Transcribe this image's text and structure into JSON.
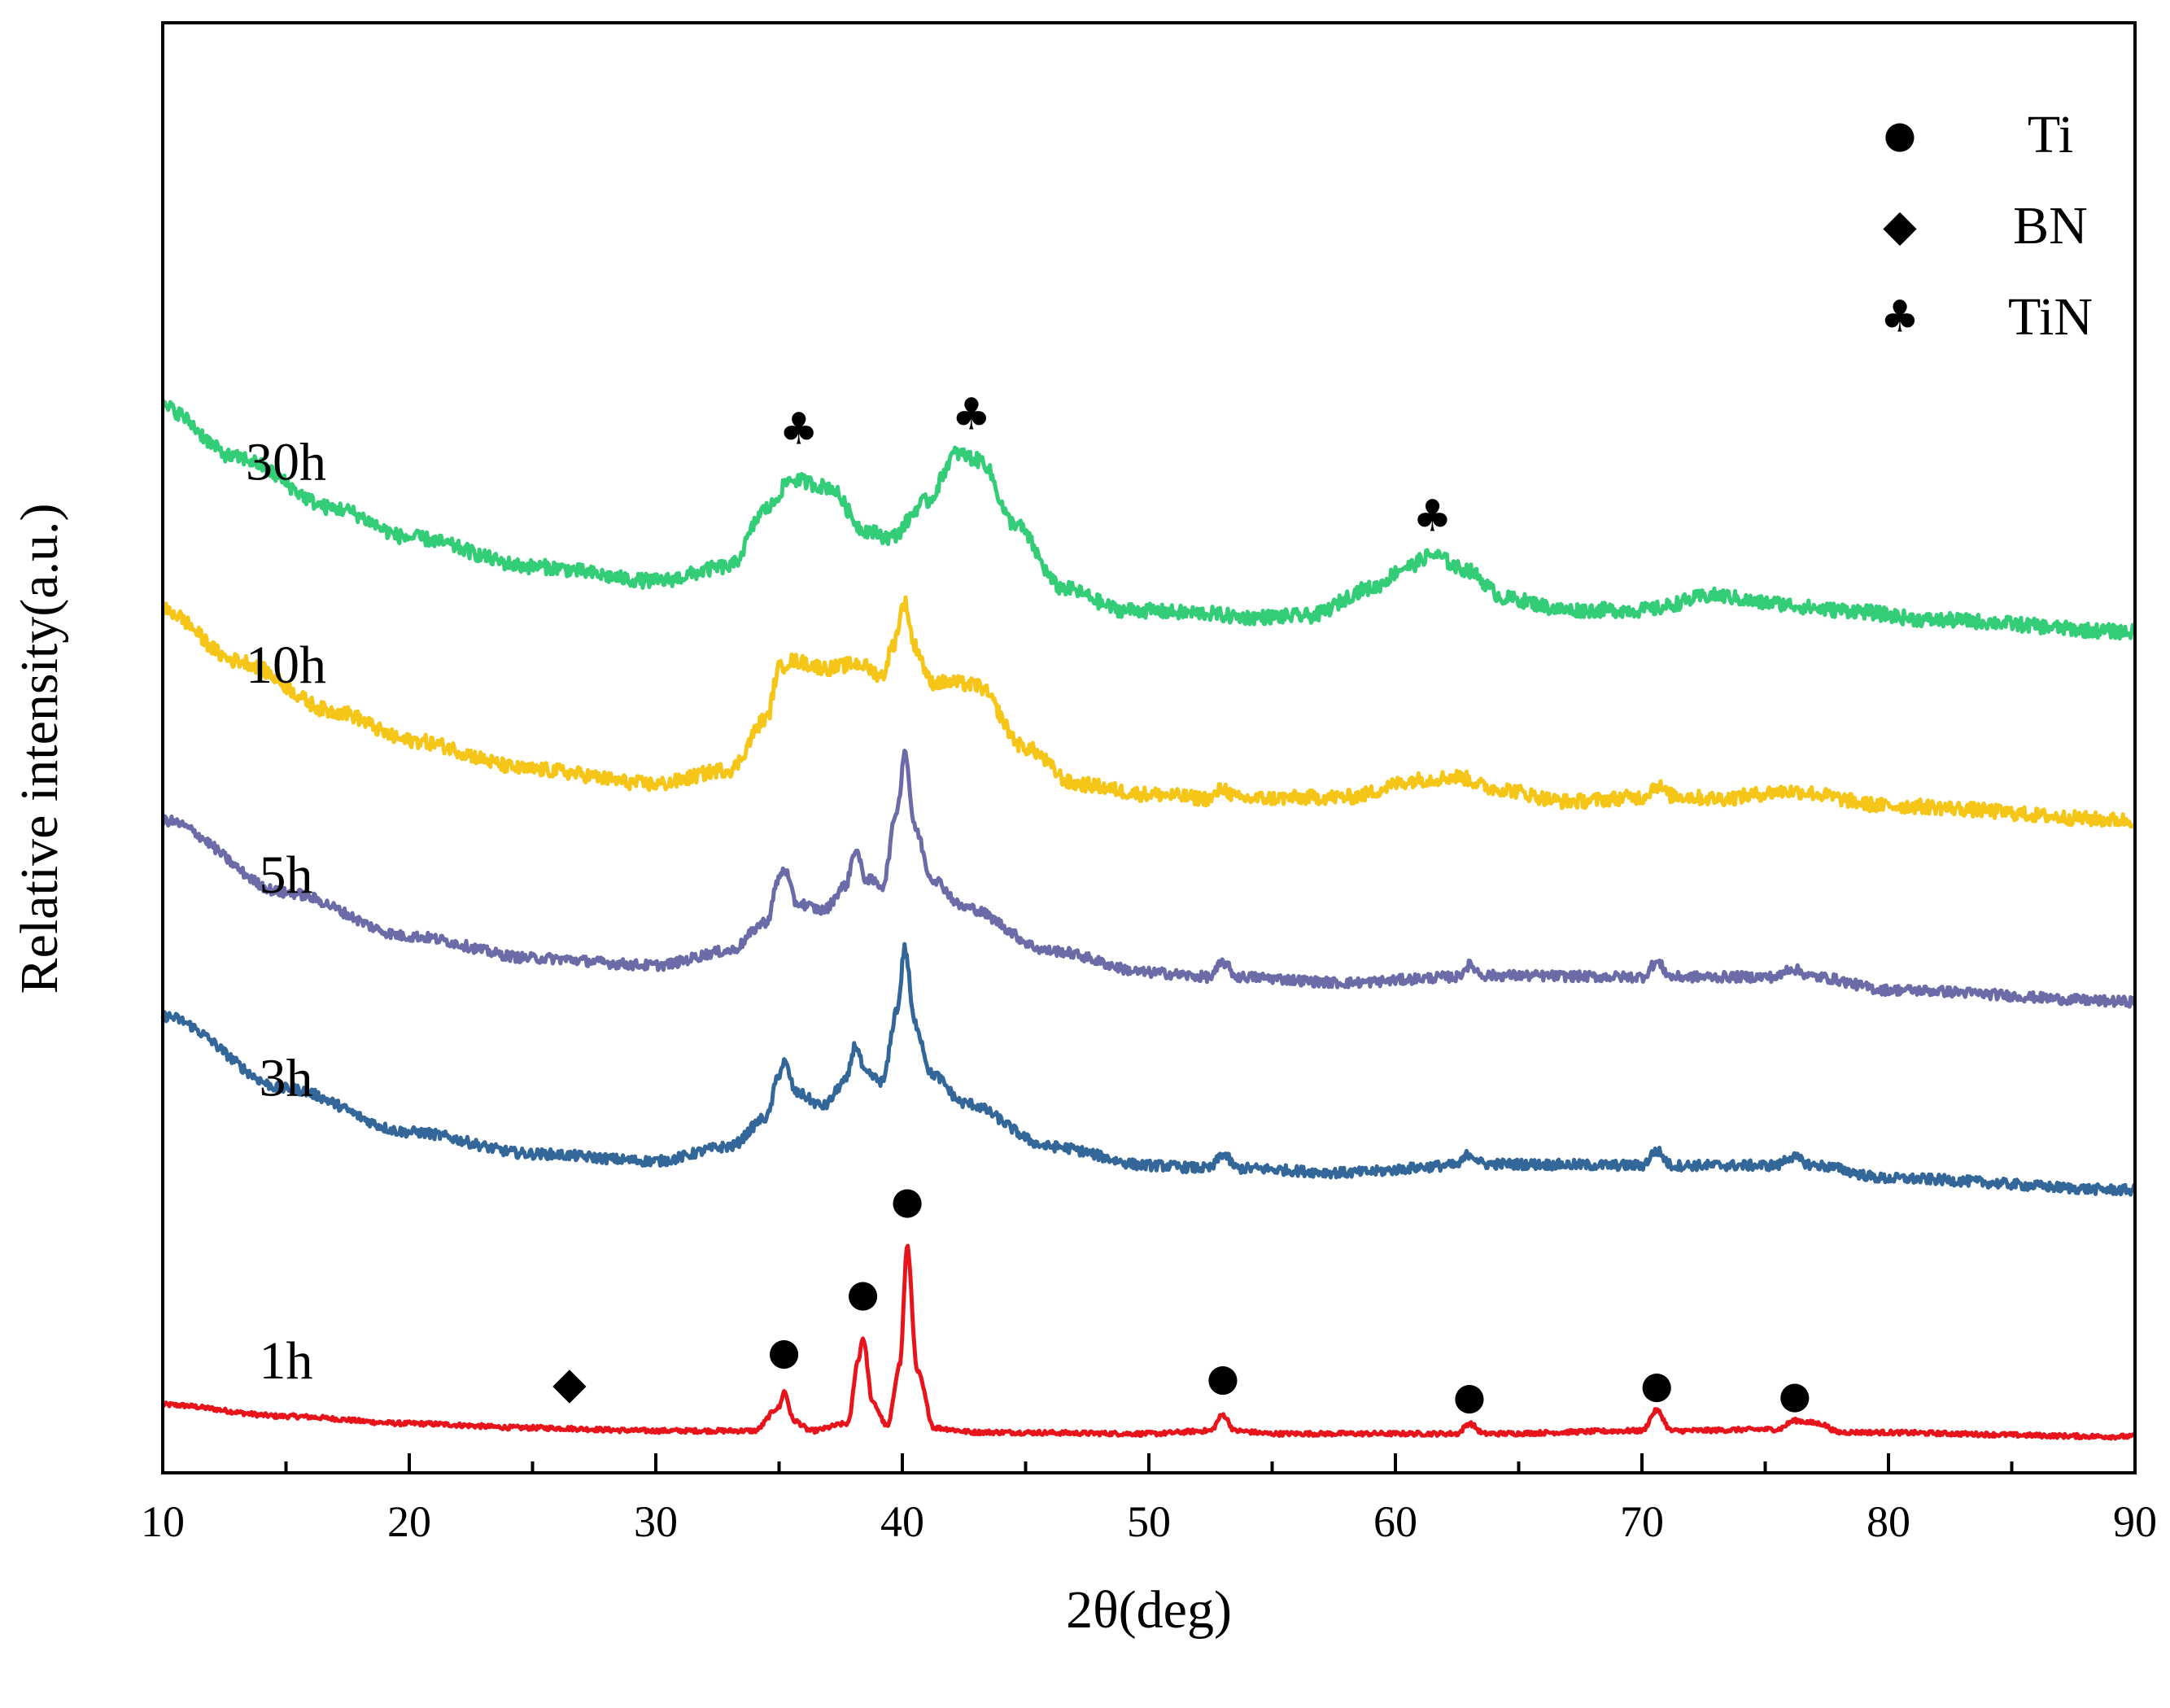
{
  "chart_data": {
    "type": "line",
    "title": "",
    "xlabel": "2θ(deg)",
    "ylabel": "Relative intensity(a.u.)",
    "xlim": [
      10,
      90
    ],
    "ylim": [
      0,
      100
    ],
    "x_ticks": [
      10,
      20,
      30,
      40,
      50,
      60,
      70,
      80,
      90
    ],
    "x_tick_labels": [
      "10",
      "20",
      "30",
      "40",
      "50",
      "60",
      "70",
      "80",
      "90"
    ],
    "y_ticks_shown": false,
    "legend": {
      "position": "top-right",
      "entries": [
        {
          "symbol": "circle",
          "glyph": "●",
          "label": "Ti"
        },
        {
          "symbol": "diamond",
          "glyph": "◆",
          "label": "BN"
        },
        {
          "symbol": "club",
          "glyph": "♣",
          "label": "TiN"
        }
      ]
    },
    "series": [
      {
        "name": "1h",
        "color": "#e8141c",
        "noise": 0.15,
        "points": [
          [
            10,
            4.7
          ],
          [
            15,
            3.9
          ],
          [
            20,
            3.4
          ],
          [
            25,
            3.1
          ],
          [
            30,
            2.9
          ],
          [
            34,
            2.9
          ],
          [
            35,
            4.5
          ],
          [
            35.2,
            5.6
          ],
          [
            35.6,
            3.6
          ],
          [
            36.3,
            2.9
          ],
          [
            37.8,
            3.4
          ],
          [
            38.2,
            7.7
          ],
          [
            38.4,
            9.3
          ],
          [
            38.8,
            4.8
          ],
          [
            39.4,
            3.2
          ],
          [
            39.9,
            7.5
          ],
          [
            40.2,
            15.6
          ],
          [
            40.6,
            7.0
          ],
          [
            41.3,
            3.1
          ],
          [
            43,
            2.8
          ],
          [
            50,
            2.7
          ],
          [
            52.5,
            2.9
          ],
          [
            53,
            4.0
          ],
          [
            53.5,
            2.9
          ],
          [
            55,
            2.7
          ],
          [
            62.5,
            2.7
          ],
          [
            63,
            3.4
          ],
          [
            63.6,
            2.7
          ],
          [
            70,
            2.9
          ],
          [
            70.6,
            4.3
          ],
          [
            71.2,
            2.9
          ],
          [
            75.5,
            3.0
          ],
          [
            76.2,
            3.6
          ],
          [
            77.2,
            3.4
          ],
          [
            78,
            2.8
          ],
          [
            90,
            2.5
          ]
        ]
      },
      {
        "name": "3h",
        "color": "#336699",
        "noise": 0.35,
        "points": [
          [
            10,
            31.5
          ],
          [
            15,
            26.5
          ],
          [
            20,
            23.5
          ],
          [
            25,
            22
          ],
          [
            30,
            21.5
          ],
          [
            33,
            22.5
          ],
          [
            34.5,
            24.5
          ],
          [
            35,
            27.5
          ],
          [
            35.2,
            28.3
          ],
          [
            35.7,
            26.2
          ],
          [
            36.8,
            25.3
          ],
          [
            37.7,
            27
          ],
          [
            38.1,
            29.5
          ],
          [
            38.5,
            27.5
          ],
          [
            39.2,
            27
          ],
          [
            39.8,
            32
          ],
          [
            40.1,
            36.2
          ],
          [
            40.5,
            31
          ],
          [
            41.2,
            27.5
          ],
          [
            42.5,
            25.5
          ],
          [
            46,
            22.5
          ],
          [
            50,
            21.2
          ],
          [
            52.5,
            21
          ],
          [
            53,
            22
          ],
          [
            53.6,
            21
          ],
          [
            58,
            20.7
          ],
          [
            62.5,
            21.2
          ],
          [
            63,
            22
          ],
          [
            63.6,
            21.3
          ],
          [
            70,
            21.2
          ],
          [
            70.6,
            22.2
          ],
          [
            71.2,
            21.2
          ],
          [
            75.5,
            21.2
          ],
          [
            76,
            21.8
          ],
          [
            77,
            21.2
          ],
          [
            80,
            20.3
          ],
          [
            90,
            19.5
          ]
        ]
      },
      {
        "name": "5h",
        "color": "#6b6ba8",
        "noise": 0.35,
        "points": [
          [
            10,
            45
          ],
          [
            15,
            40
          ],
          [
            20,
            37
          ],
          [
            25,
            35.5
          ],
          [
            30,
            35
          ],
          [
            33,
            36
          ],
          [
            34.5,
            38
          ],
          [
            35,
            41
          ],
          [
            35.2,
            41.7
          ],
          [
            35.7,
            39.3
          ],
          [
            36.8,
            38.8
          ],
          [
            37.7,
            40.5
          ],
          [
            38.1,
            43
          ],
          [
            38.5,
            41
          ],
          [
            39.2,
            40.5
          ],
          [
            39.8,
            45.8
          ],
          [
            40.1,
            49.8
          ],
          [
            40.5,
            44.5
          ],
          [
            41.2,
            41
          ],
          [
            42.5,
            39
          ],
          [
            46,
            36
          ],
          [
            50,
            34.5
          ],
          [
            52.5,
            34.2
          ],
          [
            53,
            35.2
          ],
          [
            53.6,
            34.2
          ],
          [
            58,
            33.8
          ],
          [
            62.5,
            34.2
          ],
          [
            63,
            35
          ],
          [
            63.6,
            34.3
          ],
          [
            70,
            34.2
          ],
          [
            70.6,
            35.2
          ],
          [
            71.2,
            34.2
          ],
          [
            75.5,
            34.2
          ],
          [
            76,
            34.8
          ],
          [
            77,
            34.2
          ],
          [
            80,
            33.3
          ],
          [
            90,
            32.5
          ]
        ]
      },
      {
        "name": "10h",
        "color": "#f5c518",
        "noise": 0.5,
        "points": [
          [
            10,
            59.5
          ],
          [
            13,
            56
          ],
          [
            17,
            52.5
          ],
          [
            20,
            50.5
          ],
          [
            25,
            48.5
          ],
          [
            30,
            47.5
          ],
          [
            33,
            48.5
          ],
          [
            34.5,
            52
          ],
          [
            35,
            55.5
          ],
          [
            35.5,
            56
          ],
          [
            37,
            55.5
          ],
          [
            38.2,
            55.8
          ],
          [
            39.2,
            55
          ],
          [
            39.6,
            57
          ],
          [
            40.1,
            60
          ],
          [
            40.5,
            57
          ],
          [
            41.2,
            54.5
          ],
          [
            42,
            54.5
          ],
          [
            43,
            54.3
          ],
          [
            45,
            50
          ],
          [
            47,
            47.5
          ],
          [
            50,
            46.8
          ],
          [
            52.5,
            46.5
          ],
          [
            53,
            47.2
          ],
          [
            53.6,
            46.5
          ],
          [
            58,
            46.6
          ],
          [
            61,
            47.8
          ],
          [
            62.5,
            48
          ],
          [
            64,
            47.2
          ],
          [
            67,
            46.3
          ],
          [
            70,
            46.6
          ],
          [
            70.6,
            47.4
          ],
          [
            71.2,
            46.7
          ],
          [
            73,
            46.5
          ],
          [
            76,
            47
          ],
          [
            80,
            46
          ],
          [
            90,
            45
          ]
        ]
      },
      {
        "name": "30h",
        "color": "#33cc77",
        "noise": 0.5,
        "points": [
          [
            10,
            73.5
          ],
          [
            13,
            70
          ],
          [
            17,
            66.5
          ],
          [
            20,
            64.5
          ],
          [
            25,
            62.5
          ],
          [
            30,
            61.5
          ],
          [
            33,
            62.5
          ],
          [
            34.5,
            66.5
          ],
          [
            35.5,
            68.5
          ],
          [
            37,
            68
          ],
          [
            38.5,
            65
          ],
          [
            39.5,
            64.5
          ],
          [
            41,
            67
          ],
          [
            42.2,
            70.3
          ],
          [
            43.2,
            69.8
          ],
          [
            44.5,
            65.5
          ],
          [
            46.5,
            61
          ],
          [
            49,
            59.5
          ],
          [
            52,
            59.3
          ],
          [
            54,
            59
          ],
          [
            56.5,
            59.1
          ],
          [
            59,
            61
          ],
          [
            60.5,
            62.5
          ],
          [
            61.5,
            63.3
          ],
          [
            62.8,
            62.3
          ],
          [
            64.5,
            60.3
          ],
          [
            67,
            59.5
          ],
          [
            70,
            59.5
          ],
          [
            73,
            60.5
          ],
          [
            75,
            60
          ],
          [
            78,
            59.5
          ],
          [
            82,
            58.8
          ],
          [
            90,
            58
          ]
        ]
      }
    ],
    "peak_markers": [
      {
        "series": "1h",
        "type": "BN",
        "glyph": "◆",
        "x": 26.5,
        "y": 6.2
      },
      {
        "series": "1h",
        "type": "Ti",
        "glyph": "●",
        "x": 35.2,
        "y": 8.4
      },
      {
        "series": "1h",
        "type": "Ti",
        "glyph": "●",
        "x": 38.4,
        "y": 12.4
      },
      {
        "series": "1h",
        "type": "Ti",
        "glyph": "●",
        "x": 40.2,
        "y": 18.8
      },
      {
        "series": "1h",
        "type": "Ti",
        "glyph": "●",
        "x": 53.0,
        "y": 6.6
      },
      {
        "series": "1h",
        "type": "Ti",
        "glyph": "●",
        "x": 63.0,
        "y": 5.3
      },
      {
        "series": "1h",
        "type": "Ti",
        "glyph": "●",
        "x": 70.6,
        "y": 6.1
      },
      {
        "series": "1h",
        "type": "Ti",
        "glyph": "●",
        "x": 76.2,
        "y": 5.4
      },
      {
        "series": "30h",
        "type": "TiN",
        "glyph": "♣",
        "x": 35.8,
        "y": 72.0
      },
      {
        "series": "30h",
        "type": "TiN",
        "glyph": "♣",
        "x": 42.8,
        "y": 73.0
      },
      {
        "series": "30h",
        "type": "TiN",
        "glyph": "♣",
        "x": 61.5,
        "y": 66.0
      }
    ],
    "curve_labels": [
      {
        "text": "1h",
        "x": 15.0,
        "y": 6.5
      },
      {
        "text": "3h",
        "x": 15.0,
        "y": 26.0
      },
      {
        "text": "5h",
        "x": 15.0,
        "y": 40.0
      },
      {
        "text": "10h",
        "x": 15.0,
        "y": 54.5
      },
      {
        "text": "30h",
        "x": 15.0,
        "y": 68.5
      }
    ]
  }
}
